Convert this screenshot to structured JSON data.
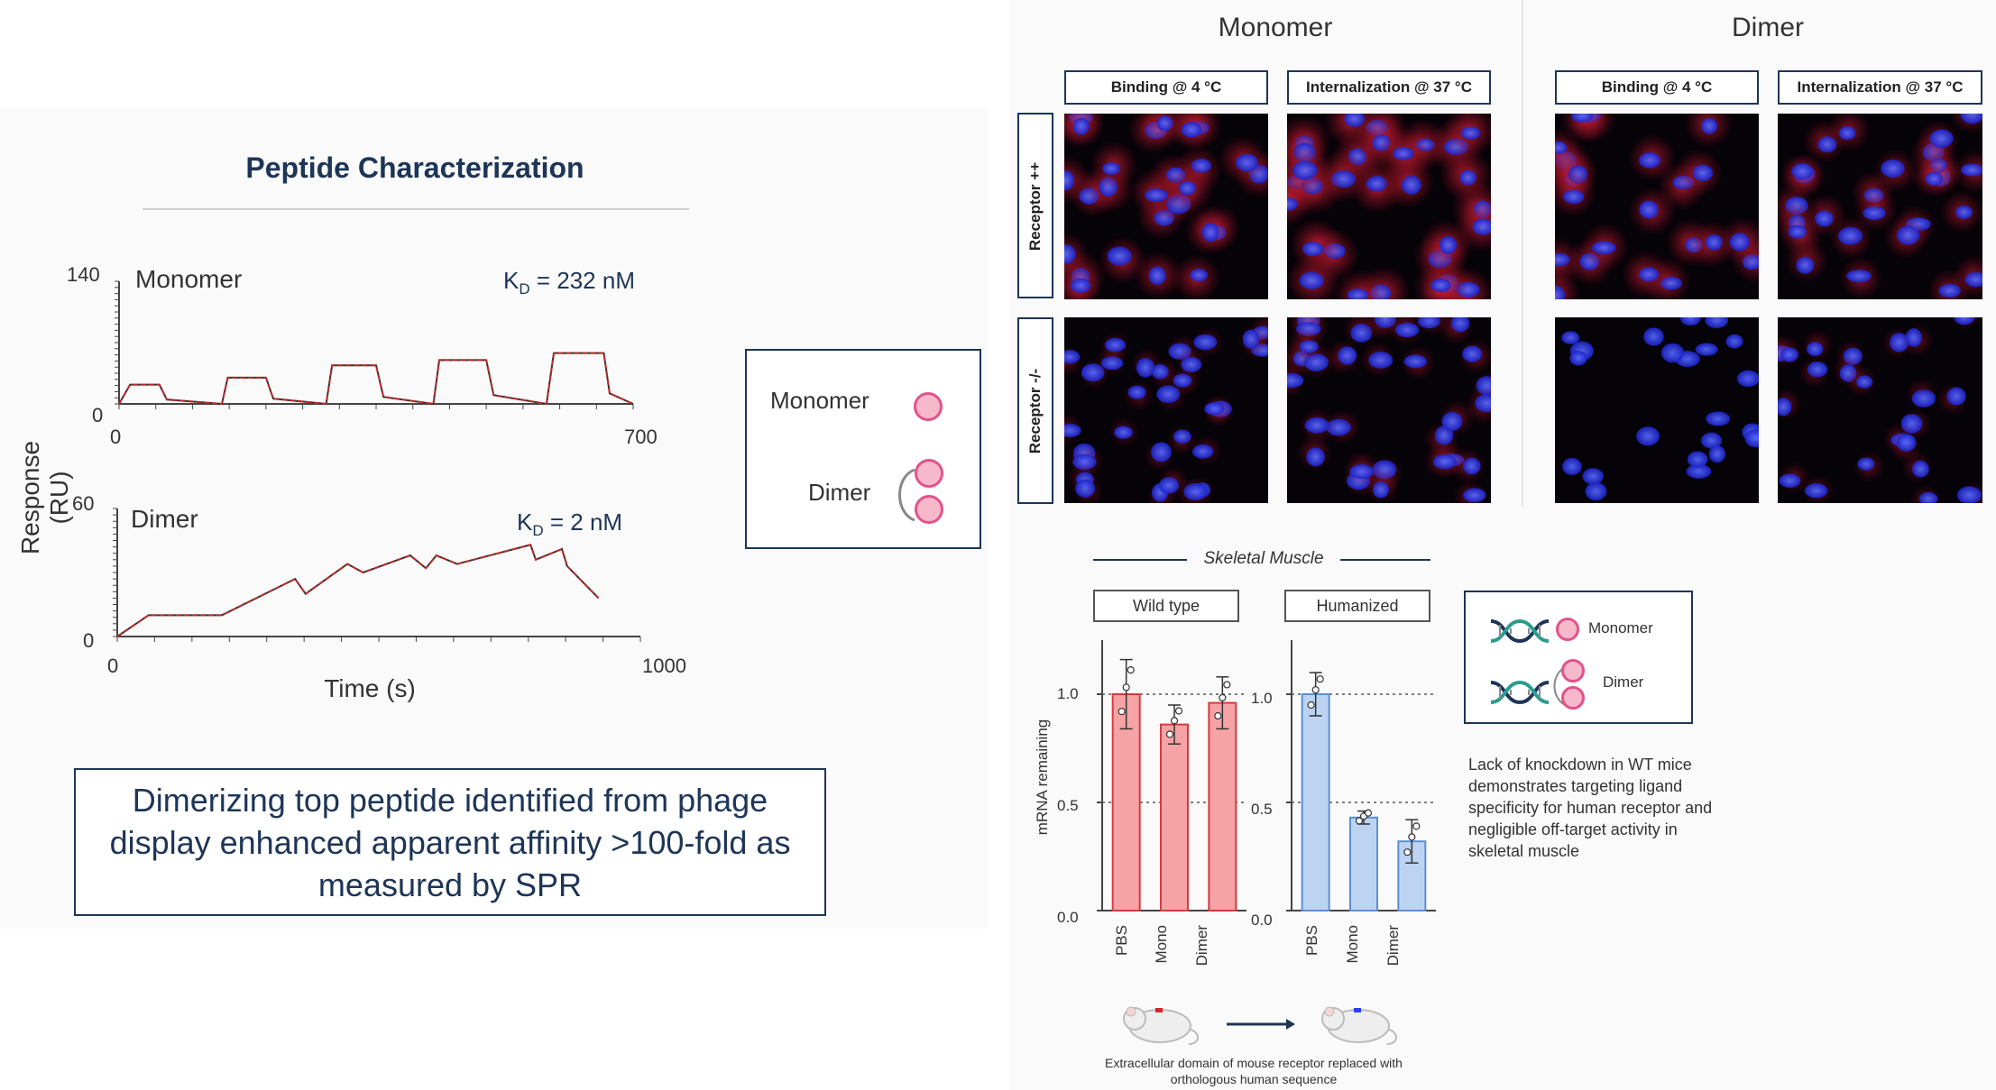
{
  "left_panel": {
    "title": "Peptide Characterization",
    "y_axis_label": "Response (RU)",
    "x_axis_label": "Time (s)",
    "conclusion": "Dimerizing top peptide identified from phage display enhanced apparent affinity >100-fold as measured by SPR"
  },
  "chart_data": [
    {
      "type": "line",
      "title": "Monomer",
      "annotation": "232 nM",
      "kd_prefix": "K",
      "kd_sub": "D",
      "kd_eq": " = ",
      "xlim": [
        0,
        700
      ],
      "ylim": [
        0,
        140
      ],
      "x_ticks": [
        "0",
        "700"
      ],
      "y_ticks": [
        "140",
        "0"
      ],
      "x": [
        0,
        15,
        55,
        65,
        140,
        148,
        200,
        210,
        282,
        290,
        350,
        360,
        428,
        436,
        500,
        510,
        582,
        592,
        660,
        668,
        700
      ],
      "series": [
        {
          "values": [
            0,
            22,
            22,
            5,
            0,
            30,
            30,
            6,
            0,
            44,
            44,
            8,
            0,
            50,
            50,
            10,
            0,
            58,
            58,
            12,
            0
          ],
          "color": "#d62828"
        }
      ]
    },
    {
      "type": "line",
      "title": "Dimer",
      "annotation": "2 nM",
      "kd_prefix": "K",
      "kd_sub": "D",
      "kd_eq": " = ",
      "xlim": [
        0,
        1000
      ],
      "ylim": [
        0,
        60
      ],
      "x_ticks": [
        "0",
        "1000"
      ],
      "y_ticks": [
        "60",
        "0"
      ],
      "x": [
        0,
        60,
        140,
        200,
        340,
        360,
        440,
        470,
        560,
        590,
        610,
        650,
        790,
        800,
        850,
        860,
        920
      ],
      "series": [
        {
          "values": [
            0,
            10,
            10,
            10,
            27,
            20,
            34,
            30,
            38,
            32,
            38,
            34,
            43,
            36,
            41,
            33,
            18
          ],
          "color": "#d62828"
        }
      ]
    },
    {
      "type": "bar",
      "title": "Wild type",
      "xlabel": "",
      "ylabel": "mRNA remaining",
      "ylim": [
        0,
        1.25
      ],
      "y_ticks": [
        "1.0",
        "0.5",
        "0.0"
      ],
      "categories": [
        "PBS",
        "Mono",
        "Dimer"
      ],
      "values": [
        1.0,
        0.86,
        0.96
      ],
      "errors": [
        0.16,
        0.09,
        0.12
      ],
      "color": "#f6a3a6",
      "edge": "#d93a3f"
    },
    {
      "type": "bar",
      "title": "Humanized",
      "xlabel": "",
      "ylabel": "",
      "ylim": [
        0,
        1.25
      ],
      "y_ticks": [
        "1.0",
        "0.5",
        "0.0"
      ],
      "categories": [
        "PBS",
        "Mono",
        "Dimer"
      ],
      "values": [
        1.0,
        0.43,
        0.32
      ],
      "errors": [
        0.1,
        0.03,
        0.1
      ],
      "color": "#bcd3f2",
      "edge": "#5d8fcf"
    }
  ],
  "legend": {
    "monomer": "Monomer",
    "dimer": "Dimer"
  },
  "imaging": {
    "columns": [
      "Monomer",
      "Dimer"
    ],
    "conditions": [
      "Binding @ 4 °C",
      "Internalization @ 37 °C",
      "Binding @ 4 °C",
      "Internalization @ 37 °C"
    ],
    "rows": [
      "Receptor ++",
      "Receptor -/-"
    ]
  },
  "muscle": {
    "title": "Skeletal Muscle",
    "dna_monomer": "Monomer",
    "dna_dimer": "Dimer",
    "note": "Lack of knockdown in WT mice demonstrates targeting ligand specificity for human receptor and negligible off-target activity in skeletal muscle",
    "mouse_caption": "Extracellular domain of mouse receptor replaced with orthologous human sequence"
  },
  "colors": {
    "navy": "#1d3557",
    "fit_line": "#333333",
    "data_red": "#d62828",
    "nucleus_blue": "#2a3fff",
    "membrane_red": "#c0162a"
  }
}
